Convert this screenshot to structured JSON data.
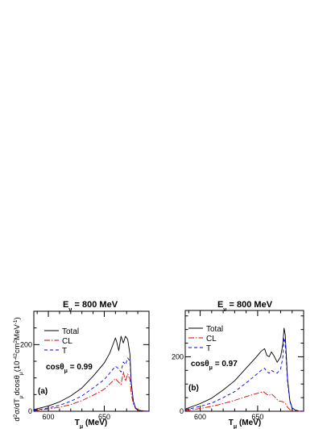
{
  "figure": {
    "ylabel_main": "d",
    "ylabel_sup1": "2",
    "ylabel_mid": "σ/dT",
    "ylabel_sub1": "μ",
    "ylabel_mid2": "dcosθ",
    "ylabel_sub2": "μ",
    "ylabel_unit": "(10",
    "ylabel_exp1": "-42",
    "ylabel_unit2": "cm",
    "ylabel_exp2": "2",
    "ylabel_unit3": "MeV",
    "ylabel_exp3": "-1",
    "ylabel_end": ")"
  },
  "chart_data": [
    {
      "type": "line",
      "panel_label": "(a)",
      "title_main": "E",
      "title_sub": "ν",
      "title_rest": " = 800 MeV",
      "xlabel_main": "T",
      "xlabel_sub": "μ",
      "xlabel_rest": " (MeV)",
      "cos_main": "cosθ",
      "cos_sub": "μ",
      "cos_value": " = 0.99",
      "xlim": [
        587,
        690
      ],
      "ylim": [
        0,
        300
      ],
      "xticks": [
        600,
        650
      ],
      "yticks": [
        0,
        200
      ],
      "legend": [
        {
          "name": "Total",
          "color": "#000000",
          "dash": ""
        },
        {
          "name": "CL",
          "color": "#e00000",
          "dash": "7,2,1.5,2"
        },
        {
          "name": "T",
          "color": "#0000e0",
          "dash": "4,3"
        }
      ],
      "series": [
        {
          "name": "Total",
          "color": "#000000",
          "dash": "",
          "x": [
            587,
            600,
            610,
            620,
            630,
            640,
            650,
            655,
            660,
            661,
            663,
            665,
            667,
            669,
            671,
            673,
            674,
            676,
            678,
            680,
            683,
            686,
            690
          ],
          "y": [
            5,
            16,
            28,
            46,
            70,
            105,
            145,
            175,
            220,
            210,
            182,
            225,
            205,
            225,
            215,
            170,
            90,
            30,
            10,
            4,
            2,
            1,
            0
          ]
        },
        {
          "name": "CL",
          "color": "#e00000",
          "dash": "7,2,1.5,2",
          "x": [
            587,
            600,
            610,
            620,
            630,
            640,
            650,
            655,
            660,
            662,
            665,
            667,
            669,
            671,
            673,
            674,
            676,
            678,
            680,
            683,
            686,
            690
          ],
          "y": [
            2,
            7,
            12,
            20,
            32,
            48,
            66,
            82,
            98,
            90,
            80,
            118,
            90,
            112,
            95,
            55,
            22,
            8,
            3,
            1,
            0,
            0
          ]
        },
        {
          "name": "T",
          "color": "#0000e0",
          "dash": "4,3",
          "x": [
            587,
            600,
            610,
            620,
            630,
            640,
            650,
            655,
            660,
            662,
            665,
            667,
            669,
            671,
            673,
            674,
            676,
            678,
            680,
            683,
            686,
            690
          ],
          "y": [
            3,
            10,
            18,
            30,
            46,
            70,
            95,
            115,
            135,
            130,
            118,
            148,
            140,
            160,
            150,
            85,
            30,
            10,
            4,
            1,
            0,
            0
          ]
        }
      ]
    },
    {
      "type": "line",
      "panel_label": "(b)",
      "title_main": "E",
      "title_sub": "ν",
      "title_rest": " = 800 MeV",
      "xlabel_main": "T",
      "xlabel_sub": "μ",
      "xlabel_rest": " (MeV)",
      "cos_main": "cosθ",
      "cos_sub": "μ",
      "cos_value": " = 0.97",
      "xlim": [
        587,
        690
      ],
      "ylim": [
        0,
        370
      ],
      "xticks": [
        600,
        650
      ],
      "yticks": [
        0,
        200
      ],
      "legend": [
        {
          "name": "Total",
          "color": "#000000",
          "dash": ""
        },
        {
          "name": "CL",
          "color": "#e00000",
          "dash": "7,2,1.5,2"
        },
        {
          "name": "T",
          "color": "#0000e0",
          "dash": "4,3"
        }
      ],
      "series": [
        {
          "name": "Total",
          "color": "#000000",
          "dash": "",
          "x": [
            587,
            600,
            610,
            620,
            630,
            640,
            648,
            653,
            656,
            658,
            660,
            662,
            664,
            667,
            670,
            672,
            673,
            674,
            676,
            678,
            680,
            683,
            686,
            690
          ],
          "y": [
            8,
            28,
            48,
            78,
            112,
            158,
            195,
            220,
            230,
            205,
            200,
            218,
            205,
            180,
            200,
            250,
            305,
            280,
            120,
            40,
            12,
            4,
            1,
            0
          ]
        },
        {
          "name": "CL",
          "color": "#e00000",
          "dash": "7,2,1.5,2",
          "x": [
            587,
            600,
            610,
            620,
            630,
            640,
            648,
            653,
            655,
            658,
            660,
            662,
            665,
            668,
            671,
            674,
            676,
            678,
            680,
            683,
            686,
            690
          ],
          "y": [
            3,
            10,
            18,
            28,
            40,
            54,
            64,
            70,
            72,
            62,
            58,
            64,
            52,
            38,
            36,
            30,
            15,
            6,
            2,
            1,
            0,
            0
          ]
        },
        {
          "name": "T",
          "color": "#0000e0",
          "dash": "4,3",
          "x": [
            587,
            600,
            610,
            620,
            630,
            640,
            648,
            653,
            656,
            658,
            660,
            662,
            664,
            667,
            670,
            672,
            673,
            674,
            676,
            678,
            680,
            683,
            686,
            690
          ],
          "y": [
            5,
            18,
            30,
            50,
            72,
            104,
            132,
            150,
            158,
            145,
            140,
            150,
            145,
            140,
            155,
            200,
            270,
            250,
            110,
            36,
            10,
            3,
            1,
            0
          ]
        }
      ]
    }
  ]
}
